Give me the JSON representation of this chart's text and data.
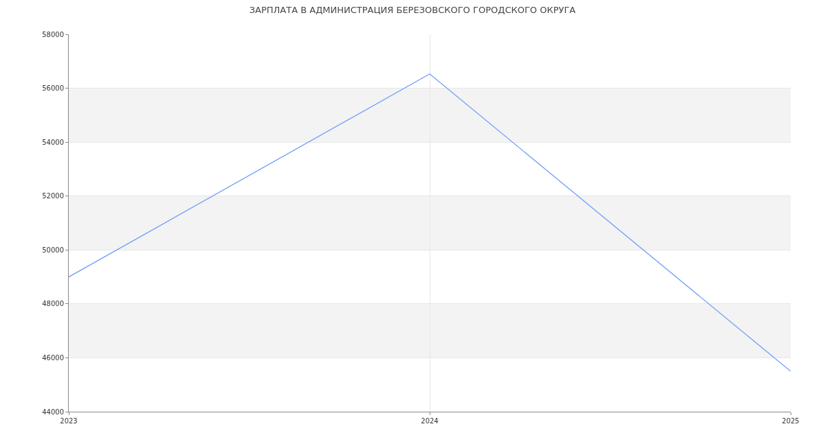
{
  "chart_data": {
    "type": "line",
    "title": "ЗАРПЛАТА В АДМИНИСТРАЦИЯ БЕРЕЗОВСКОГО ГОРОДСКОГО ОКРУГА",
    "x": [
      2023,
      2024,
      2025
    ],
    "series": [
      {
        "color": "#6f9ef8",
        "values": [
          49000,
          56530,
          45500
        ]
      }
    ],
    "xlim": [
      2023,
      2025
    ],
    "xticks": [
      2023,
      2024,
      2025
    ],
    "ylim": [
      44000,
      58000
    ],
    "yticks": [
      44000,
      46000,
      48000,
      50000,
      52000,
      54000,
      56000,
      58000
    ],
    "grid": true,
    "marker": "none",
    "line_style": "solid"
  }
}
